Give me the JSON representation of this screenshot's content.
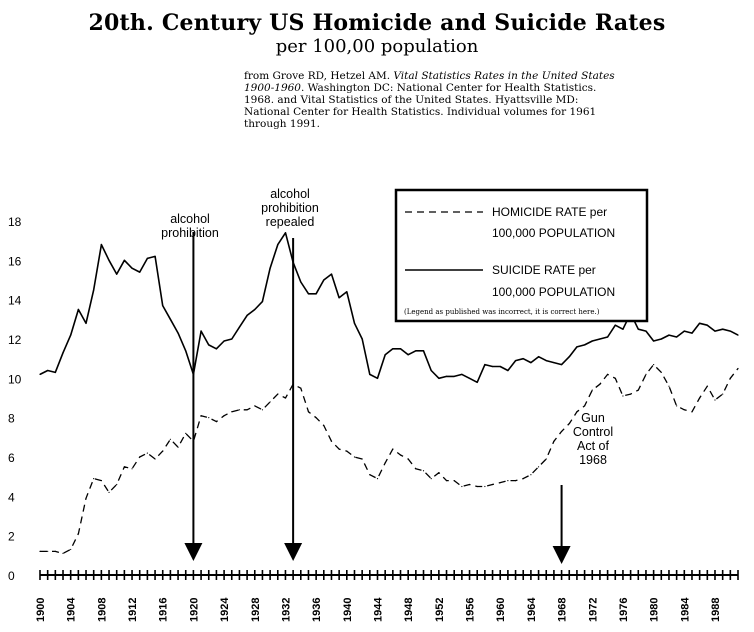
{
  "title": "20th. Century US Homicide and Suicide Rates",
  "subtitle": "per 100,00 population",
  "source": {
    "prefix": "from Grove RD, Hetzel AM. ",
    "italic": "Vital Statistics Rates in the United States 1900-1960",
    "suffix": ". Washington DC: National Center for Health Statistics. 1968. and Vital Statistics of the United States. Hyattsville MD: National Center for Health Statistics. Individual volumes for 1961 through 1991."
  },
  "legend": {
    "homicide_line1": "HOMICIDE RATE per",
    "homicide_line2": "100,000 POPULATION",
    "suicide_line1": "SUICIDE RATE per",
    "suicide_line2": "100,000 POPULATION",
    "note": "(Legend as published was incorrect, it is correct here.)",
    "placement": "top-right"
  },
  "annotations": [
    {
      "lines": [
        "alcohol",
        "prohibition"
      ],
      "year": 1920
    },
    {
      "lines": [
        "alcohol",
        "prohibition",
        "repealed"
      ],
      "year": 1933
    },
    {
      "lines": [
        "Gun",
        "Control",
        "Act of",
        "1968"
      ],
      "year": 1968
    }
  ],
  "chart_data": {
    "type": "line",
    "title": "20th. Century US Homicide and Suicide Rates",
    "subtitle": "per 100,00 population",
    "xlim": [
      1900,
      1991
    ],
    "ylim": [
      0,
      18
    ],
    "yticks": [
      0,
      2,
      4,
      6,
      8,
      10,
      12,
      14,
      16,
      18
    ],
    "xticks": [
      1900,
      1904,
      1908,
      1912,
      1916,
      1920,
      1924,
      1928,
      1932,
      1936,
      1940,
      1944,
      1948,
      1952,
      1956,
      1960,
      1964,
      1968,
      1972,
      1976,
      1980,
      1984,
      1988
    ],
    "grid": false,
    "x": [
      1900,
      1901,
      1902,
      1903,
      1904,
      1905,
      1906,
      1907,
      1908,
      1909,
      1910,
      1911,
      1912,
      1913,
      1914,
      1915,
      1916,
      1917,
      1918,
      1919,
      1920,
      1921,
      1922,
      1923,
      1924,
      1925,
      1926,
      1927,
      1928,
      1929,
      1930,
      1931,
      1932,
      1933,
      1934,
      1935,
      1936,
      1937,
      1938,
      1939,
      1940,
      1941,
      1942,
      1943,
      1944,
      1945,
      1946,
      1947,
      1948,
      1949,
      1950,
      1951,
      1952,
      1953,
      1954,
      1955,
      1956,
      1957,
      1958,
      1959,
      1960,
      1961,
      1962,
      1963,
      1964,
      1965,
      1966,
      1967,
      1968,
      1969,
      1970,
      1971,
      1972,
      1973,
      1974,
      1975,
      1976,
      1977,
      1978,
      1979,
      1980,
      1981,
      1982,
      1983,
      1984,
      1985,
      1986,
      1987,
      1988,
      1989,
      1990,
      1991
    ],
    "series": [
      {
        "name": "HOMICIDE RATE per 100,000 POPULATION",
        "style": "dashed",
        "values": [
          1.2,
          1.2,
          1.2,
          1.1,
          1.3,
          2.1,
          3.9,
          4.9,
          4.8,
          4.2,
          4.6,
          5.5,
          5.4,
          6.0,
          6.2,
          5.9,
          6.3,
          6.9,
          6.5,
          7.2,
          6.8,
          8.1,
          8.0,
          7.8,
          8.1,
          8.3,
          8.4,
          8.4,
          8.6,
          8.4,
          8.8,
          9.2,
          9.0,
          9.7,
          9.5,
          8.3,
          8.0,
          7.6,
          6.8,
          6.4,
          6.3,
          6.0,
          5.9,
          5.1,
          4.9,
          5.7,
          6.4,
          6.1,
          5.9,
          5.4,
          5.3,
          4.9,
          5.2,
          4.8,
          4.8,
          4.5,
          4.6,
          4.5,
          4.5,
          4.6,
          4.7,
          4.8,
          4.8,
          4.9,
          5.1,
          5.5,
          5.9,
          6.8,
          7.3,
          7.7,
          8.3,
          8.6,
          9.4,
          9.7,
          10.2,
          10.0,
          9.1,
          9.2,
          9.4,
          10.2,
          10.7,
          10.3,
          9.6,
          8.6,
          8.4,
          8.3,
          9.0,
          9.6,
          8.9,
          9.2,
          10.0,
          10.5
        ]
      },
      {
        "name": "SUICIDE RATE per 100,000 POPULATION",
        "style": "solid",
        "values": [
          10.2,
          10.4,
          10.3,
          11.3,
          12.2,
          13.5,
          12.8,
          14.5,
          16.8,
          16.0,
          15.3,
          16.0,
          15.6,
          15.4,
          16.1,
          16.2,
          13.7,
          13.0,
          12.3,
          11.4,
          10.2,
          12.4,
          11.7,
          11.5,
          11.9,
          12.0,
          12.6,
          13.2,
          13.5,
          13.9,
          15.6,
          16.8,
          17.4,
          15.9,
          14.9,
          14.3,
          14.3,
          15.0,
          15.3,
          14.1,
          14.4,
          12.8,
          12.0,
          10.2,
          10.0,
          11.2,
          11.5,
          11.5,
          11.2,
          11.4,
          11.4,
          10.4,
          10.0,
          10.1,
          10.1,
          10.2,
          10.0,
          9.8,
          10.7,
          10.6,
          10.6,
          10.4,
          10.9,
          11.0,
          10.8,
          11.1,
          10.9,
          10.8,
          10.7,
          11.1,
          11.6,
          11.7,
          11.9,
          12.0,
          12.1,
          12.7,
          12.5,
          13.3,
          12.5,
          12.4,
          11.9,
          12.0,
          12.2,
          12.1,
          12.4,
          12.3,
          12.8,
          12.7,
          12.4,
          12.5,
          12.4,
          12.2
        ]
      }
    ]
  }
}
